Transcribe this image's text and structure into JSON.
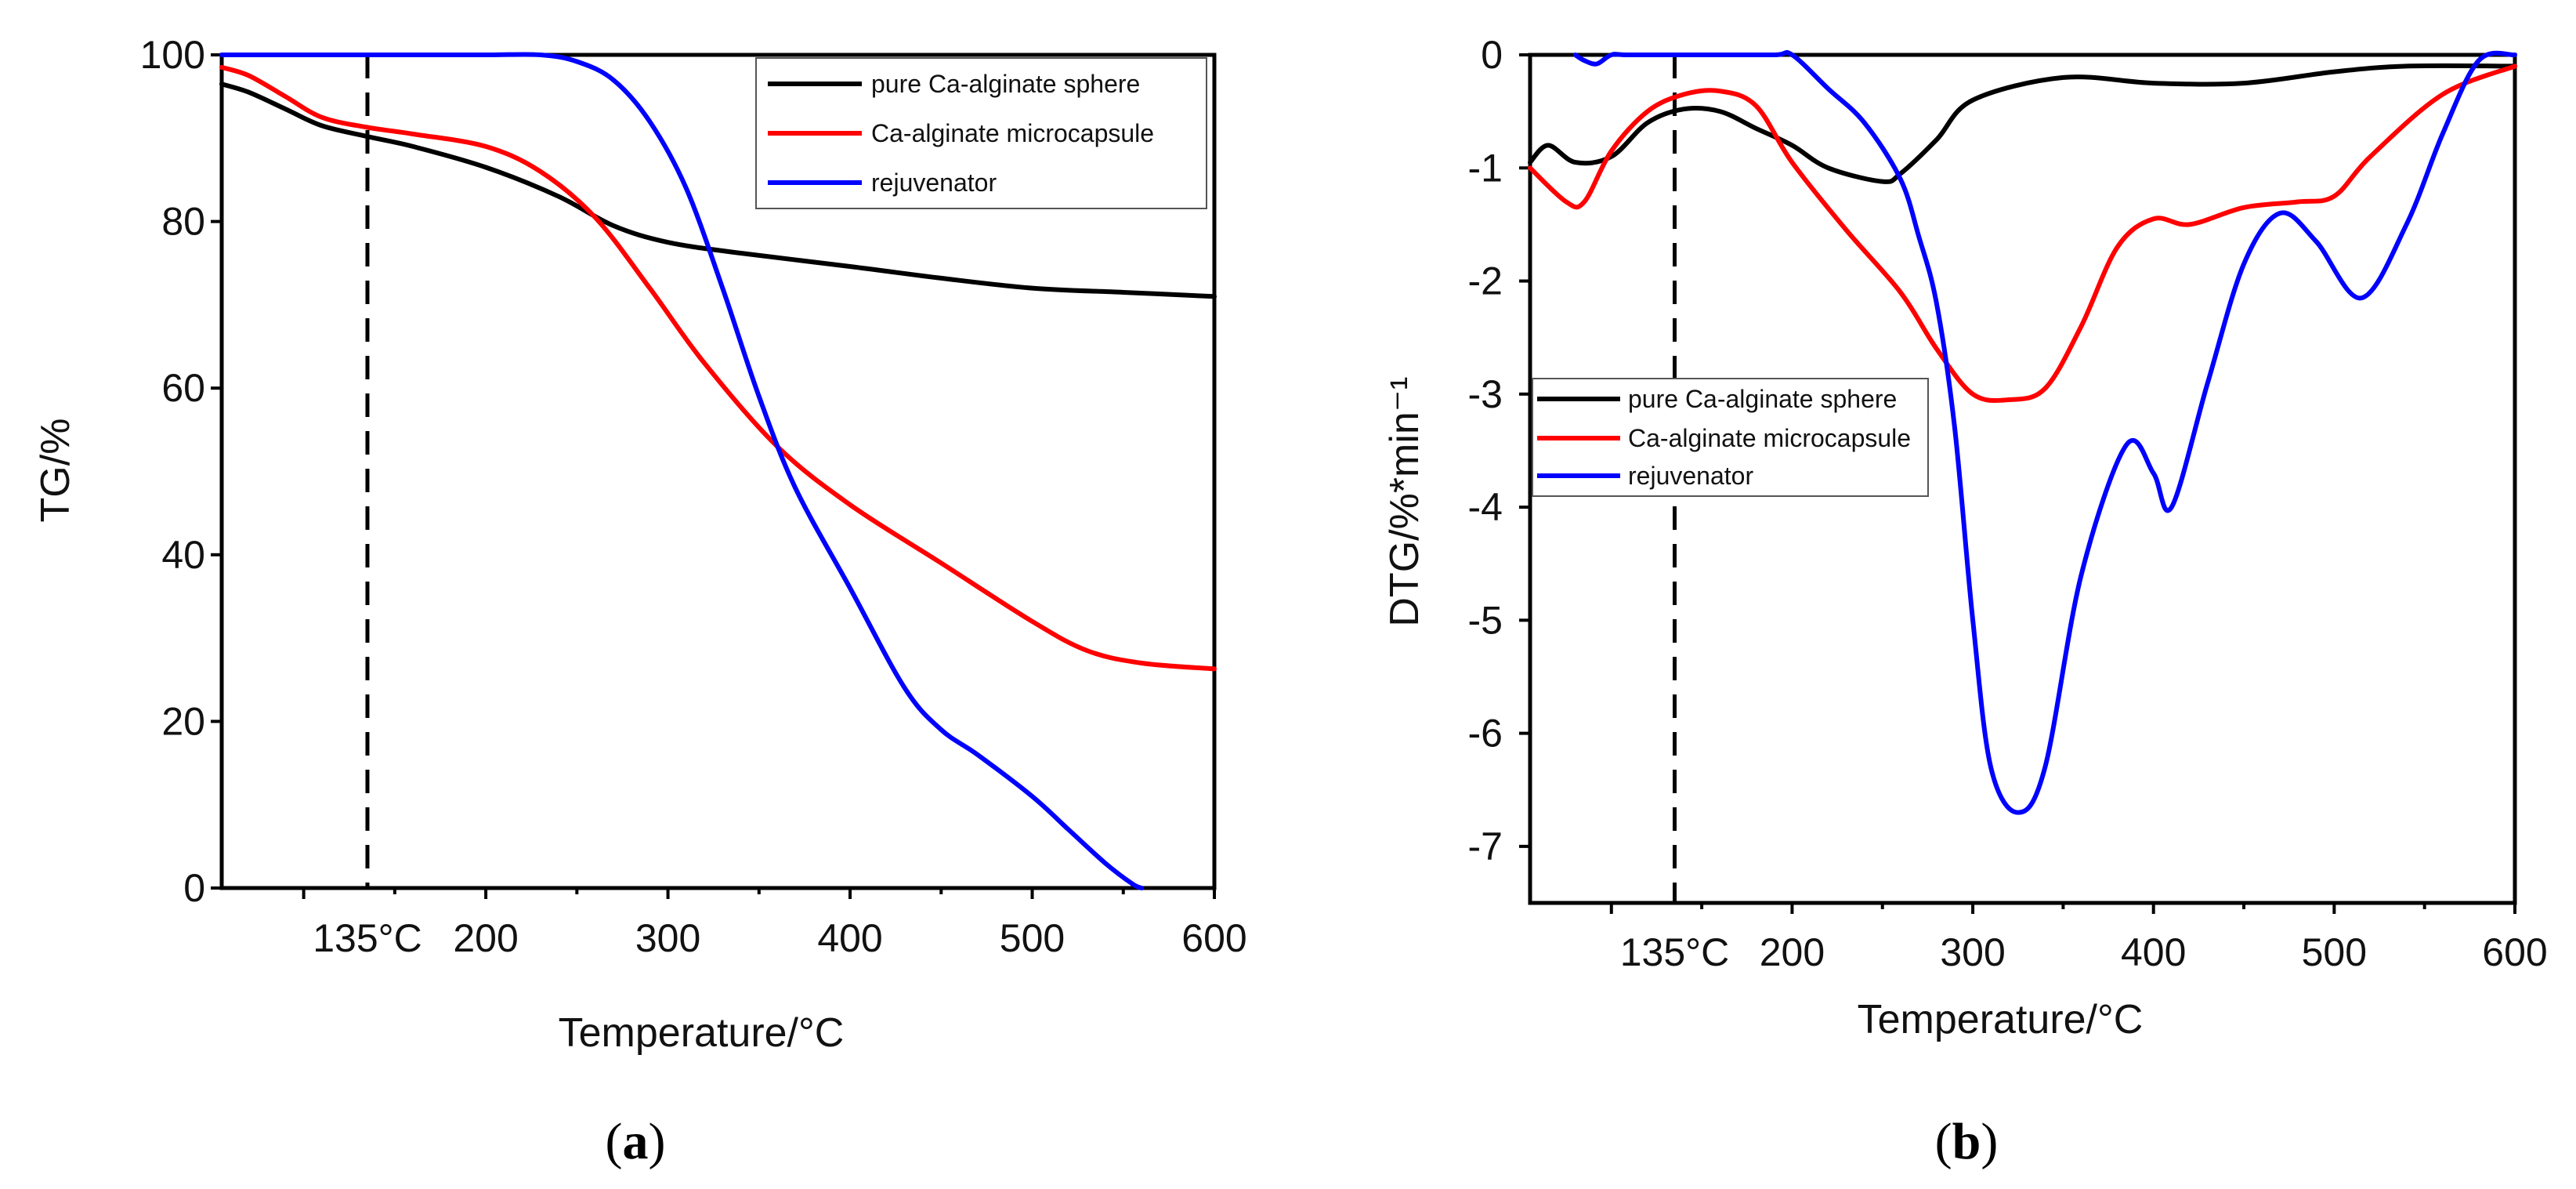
{
  "chart_data": [
    {
      "type": "line",
      "panel": "(a)",
      "panel_open": "(",
      "panel_letter": "a",
      "panel_close": ")",
      "xlabel": "Temperature/°C",
      "ylabel": "TG/%",
      "xlim": [
        55,
        600
      ],
      "ylim": [
        0,
        100
      ],
      "x_ticks": [
        135,
        200,
        300,
        400,
        500,
        600
      ],
      "x_tick_labels": [
        "135°C",
        "200",
        "300",
        "400",
        "500",
        "600"
      ],
      "y_ticks": [
        0,
        20,
        40,
        60,
        80,
        100
      ],
      "y_tick_labels": [
        "0",
        "20",
        "40",
        "60",
        "80",
        "100"
      ],
      "reference_line_x": 135,
      "legend_position": "top-right",
      "series": [
        {
          "name": "pure Ca-alginate sphere",
          "color": "#000000",
          "x": [
            55,
            70,
            90,
            110,
            135,
            160,
            200,
            240,
            270,
            300,
            340,
            400,
            450,
            500,
            550,
            600
          ],
          "y": [
            96.5,
            95.5,
            93.5,
            91.5,
            90.2,
            89,
            86.5,
            83,
            79.5,
            77.5,
            76.2,
            74.6,
            73.2,
            72,
            71.5,
            71
          ]
        },
        {
          "name": "Ca-alginate microcapsule",
          "color": "#ff0000",
          "x": [
            55,
            70,
            90,
            110,
            135,
            160,
            200,
            230,
            260,
            290,
            320,
            360,
            400,
            450,
            500,
            530,
            560,
            600
          ],
          "y": [
            98.5,
            97.5,
            95,
            92.5,
            91.3,
            90.5,
            89,
            86,
            80.5,
            72,
            63,
            53,
            46,
            39,
            32,
            28.5,
            27,
            26.3
          ]
        },
        {
          "name": "rejuvenator",
          "color": "#0000ff",
          "x": [
            55,
            100,
            150,
            200,
            230,
            250,
            270,
            290,
            310,
            330,
            350,
            370,
            400,
            430,
            450,
            470,
            500,
            520,
            540,
            555,
            560
          ],
          "y": [
            100,
            100,
            100,
            100,
            100,
            99.2,
            97,
            92,
            84,
            72,
            59,
            48,
            36,
            24,
            19,
            16,
            11,
            7,
            3,
            0.5,
            0
          ]
        }
      ]
    },
    {
      "type": "line",
      "panel": "(b)",
      "panel_open": "(",
      "panel_letter": "b",
      "panel_close": ")",
      "xlabel": "Temperature/°C",
      "ylabel": "DTG/%*min⁻¹",
      "xlim": [
        55,
        600
      ],
      "ylim": [
        -7.5,
        0
      ],
      "x_ticks": [
        135,
        200,
        300,
        400,
        500,
        600
      ],
      "x_tick_labels": [
        "135°C",
        "200",
        "300",
        "400",
        "500",
        "600"
      ],
      "y_ticks": [
        0,
        -1,
        -2,
        -3,
        -4,
        -5,
        -6,
        -7
      ],
      "y_tick_labels": [
        "0",
        "-1",
        "-2",
        "-3",
        "-4",
        "-5",
        "-6",
        "-7"
      ],
      "reference_line_x": 135,
      "legend_position": "left-middle",
      "series": [
        {
          "name": "pure Ca-alginate sphere",
          "color": "#000000",
          "x": [
            55,
            65,
            80,
            100,
            120,
            140,
            160,
            180,
            200,
            220,
            250,
            260,
            280,
            300,
            350,
            400,
            450,
            500,
            540,
            600
          ],
          "y": [
            -0.95,
            -0.8,
            -0.95,
            -0.9,
            -0.6,
            -0.48,
            -0.5,
            -0.65,
            -0.8,
            -1.0,
            -1.12,
            -1.05,
            -0.75,
            -0.4,
            -0.2,
            -0.25,
            -0.25,
            -0.15,
            -0.1,
            -0.1
          ]
        },
        {
          "name": "Ca-alginate microcapsule",
          "color": "#ff0000",
          "x": [
            55,
            75,
            85,
            100,
            120,
            140,
            160,
            180,
            200,
            230,
            260,
            280,
            300,
            320,
            340,
            360,
            380,
            400,
            420,
            450,
            480,
            500,
            520,
            560,
            600
          ],
          "y": [
            -1.0,
            -1.3,
            -1.3,
            -0.85,
            -0.5,
            -0.35,
            -0.32,
            -0.45,
            -0.95,
            -1.55,
            -2.1,
            -2.6,
            -3.0,
            -3.05,
            -2.95,
            -2.4,
            -1.7,
            -1.45,
            -1.5,
            -1.35,
            -1.3,
            -1.25,
            -0.9,
            -0.35,
            -0.1
          ]
        },
        {
          "name": "rejuvenator",
          "color": "#0000ff",
          "x": [
            80,
            85,
            92,
            100,
            110,
            150,
            190,
            200,
            220,
            240,
            260,
            270,
            280,
            290,
            300,
            310,
            325,
            340,
            360,
            385,
            400,
            410,
            430,
            450,
            470,
            490,
            515,
            540,
            560,
            580,
            600
          ],
          "y": [
            0,
            -0.05,
            -0.08,
            0,
            0,
            0,
            0,
            0,
            -0.3,
            -0.6,
            -1.1,
            -1.6,
            -2.2,
            -3.3,
            -5.0,
            -6.3,
            -6.7,
            -6.3,
            -4.6,
            -3.45,
            -3.7,
            -4.0,
            -2.9,
            -1.85,
            -1.4,
            -1.65,
            -2.15,
            -1.5,
            -0.7,
            -0.05,
            0
          ]
        }
      ]
    }
  ]
}
